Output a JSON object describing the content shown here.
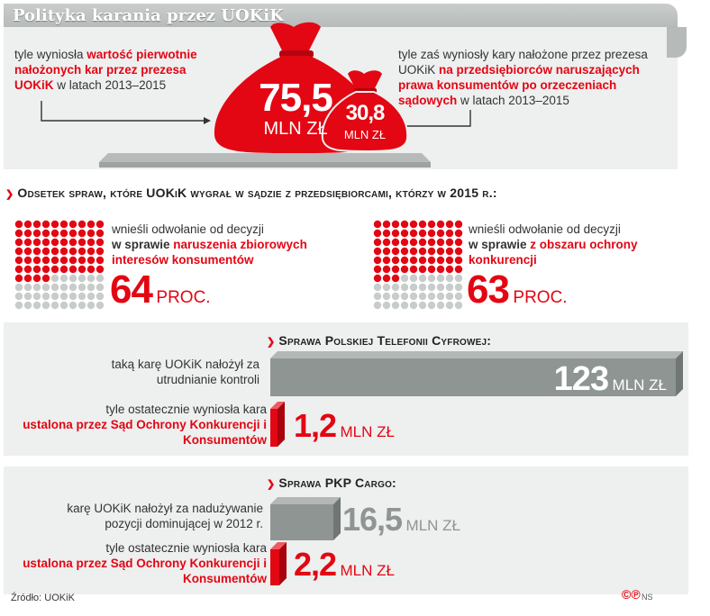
{
  "header": {
    "title": "Polityka karania przez UOKiK"
  },
  "top": {
    "left_text_1": "tyle wyniosła ",
    "left_text_red": "wartość pierwotnie nałożonych kar przez prezesa UOKiK",
    "left_text_2": " w latach 2013–2015",
    "right_text_1": "tyle zaś wyniosły kary nałożone przez prezesa UOKiK ",
    "right_text_red": "na przedsiębiorców naruszających prawa konsumentów po orzeczeniach sądowych",
    "right_text_2": " w latach 2013–2015",
    "bag_big_value": "75,5",
    "bag_big_unit": "MLN ZŁ",
    "bag_small_value": "30,8",
    "bag_small_unit": "MLN ZŁ"
  },
  "section2": {
    "heading": "Odsetek spraw, które UOKiK wygrał w sądzie z przedsiębiorcami, którzy w 2015 r.:",
    "left": {
      "line1": "wnieśli odwołanie od decyzji",
      "line2_bold": "w sprawie ",
      "line2_red": "naruszenia zbiorowych interesów konsumentów",
      "value": "64",
      "unit": "PROC."
    },
    "right": {
      "line1": "wnieśli odwołanie od decyzji",
      "line2_bold": "w sprawie ",
      "line2_red": "z obszaru ochrony konkurencji",
      "value": "63",
      "unit": "PROC."
    }
  },
  "section3": {
    "heading": "Sprawa Polskiej Telefonii Cyfrowej:",
    "row1_label": "taką karę UOKiK nałożył za utrudnianie kontroli",
    "row1_value": "123",
    "row1_unit": "MLN ZŁ",
    "row2_label_1": "tyle ostatecznie wyniosła kara",
    "row2_label_red": "ustalona przez Sąd Ochrony Konkurencji i Konsumentów",
    "row2_value": "1,2",
    "row2_unit": "MLN ZŁ"
  },
  "section4": {
    "heading": "Sprawa PKP Cargo:",
    "row1_label": "karę UOKiK nałożył za nadużywanie pozycji dominującej w 2012 r.",
    "row1_value": "16,5",
    "row1_unit": "MLN ZŁ",
    "row2_label_1": "tyle ostatecznie wyniosła kara",
    "row2_label_red": "ustalona przez Sąd Ochrony Konkurencji i Konsumentów",
    "row2_value": "2,2",
    "row2_unit": "MLN ZŁ"
  },
  "footer": {
    "source": "Źródło: UOKiK",
    "logo": "©℗",
    "credit": "NS"
  },
  "colors": {
    "red": "#e30613",
    "grey_bar": "#8e9592",
    "grey_panel": "#eeefef",
    "dot_grey": "#c8cccb"
  },
  "chart_data": [
    {
      "type": "bar",
      "categories": [
        "wartość pierwotnie nałożonych kar przez prezesa UOKiK",
        "na przedsiębiorców naruszających prawa konsumentów po orzeczeniach sądowych"
      ],
      "values": [
        75.5,
        30.8
      ],
      "unit": "MLN ZŁ"
    },
    {
      "type": "waffle",
      "categories": [
        "naruszenia zbiorowych interesów konsumentów",
        "z obszaru ochrony konkurencji"
      ],
      "values": [
        64,
        63
      ],
      "unit": "PROC.",
      "total_dots": 100
    },
    {
      "type": "bar",
      "categories": [
        "taką karę UOKiK nałożył za utrudnianie kontroli",
        "ustalona przez Sąd Ochrony Konkurencji i Konsumentów"
      ],
      "values": [
        123,
        1.2
      ],
      "unit": "MLN ZŁ"
    },
    {
      "type": "bar",
      "categories": [
        "karę UOKiK nałożył za nadużywanie pozycji dominującej w 2012 r.",
        "ustalona przez Sąd Ochrony Konkurencji i Konsumentów"
      ],
      "values": [
        16.5,
        2.2
      ],
      "unit": "MLN ZŁ"
    }
  ]
}
